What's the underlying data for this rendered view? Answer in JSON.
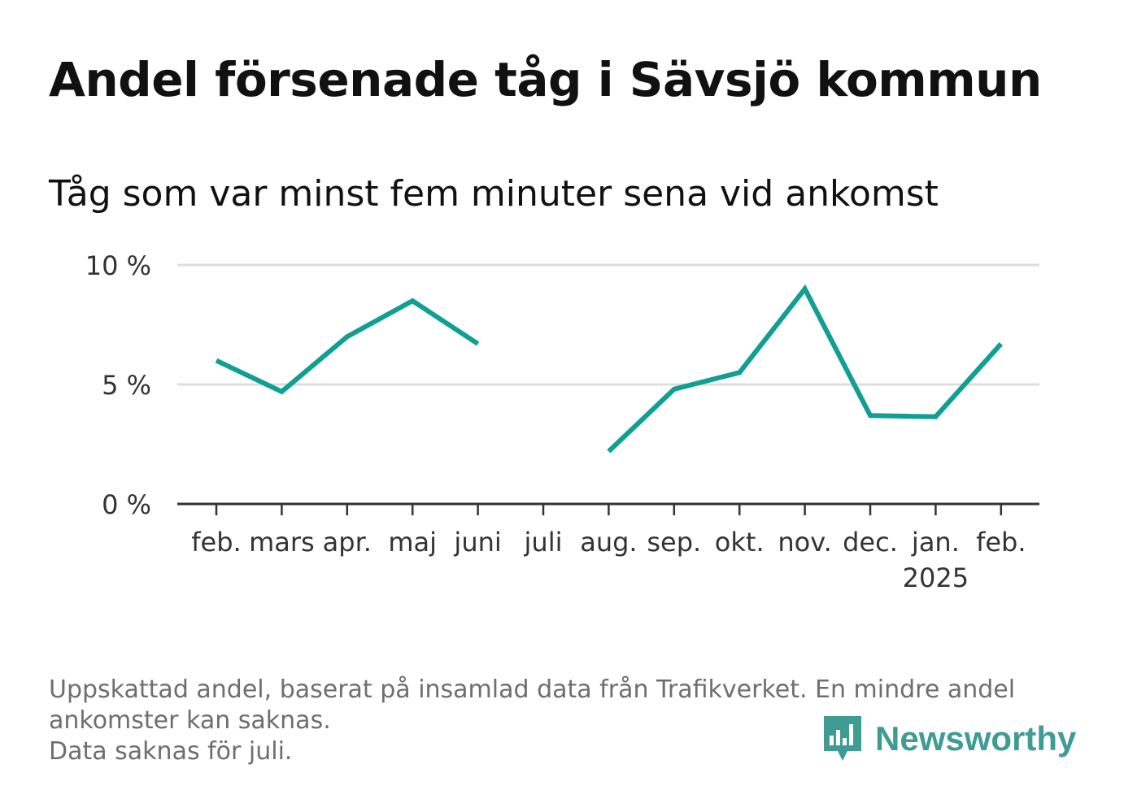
{
  "title": "Andel försenade tåg i Sävsjö kommun",
  "subtitle": "Tåg som var minst fem minuter sena vid ankomst",
  "footnote": {
    "line1": "Uppskattad andel, baserat på insamlad data från Trafikverket. En mindre andel",
    "line2": "ankomster kan saknas.",
    "line3": "Data saknas för juli."
  },
  "brand": {
    "name": "Newsworthy",
    "icon": "newsworthy-logo-icon",
    "color": "#3f9c94"
  },
  "chart_data": {
    "type": "line",
    "categories": [
      "feb.",
      "mars",
      "apr.",
      "maj",
      "juni",
      "juli",
      "aug.",
      "sep.",
      "okt.",
      "nov.",
      "dec.",
      "jan.",
      "feb."
    ],
    "year_label": "2025",
    "year_label_under": "jan.",
    "series": [
      {
        "values": [
          6.0,
          4.7,
          7.0,
          8.5,
          6.7,
          null,
          2.2,
          4.8,
          5.5,
          9.0,
          3.7,
          3.65,
          6.7
        ],
        "color": "#0f9f93"
      }
    ],
    "y_ticks": [
      0,
      5,
      10
    ],
    "y_tick_labels": [
      "0 %",
      "5 %",
      "10 %"
    ],
    "ylim": [
      0,
      10
    ],
    "grid": true,
    "xlabel": "",
    "ylabel": ""
  }
}
